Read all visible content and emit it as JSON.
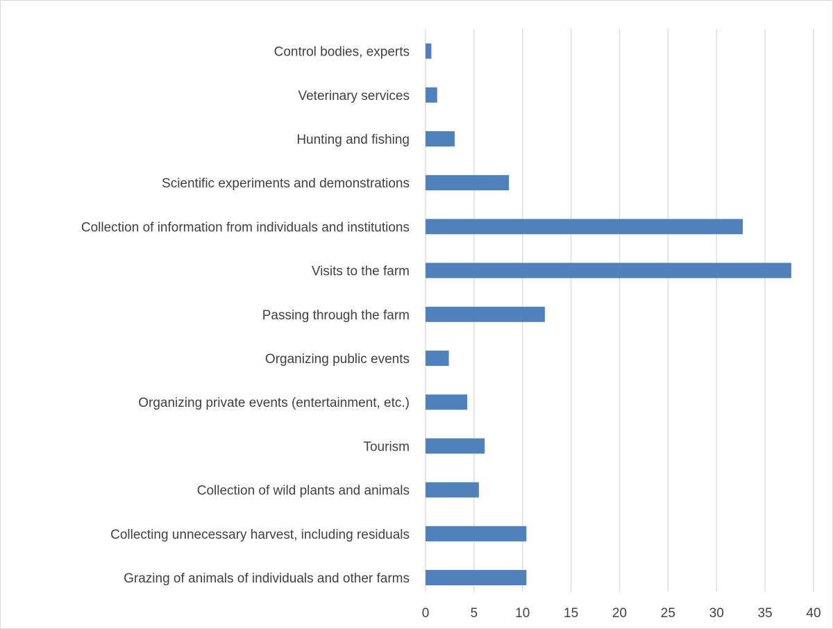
{
  "chart_data": {
    "type": "bar",
    "orientation": "horizontal",
    "categories": [
      "Control bodies, experts",
      "Veterinary services",
      "Hunting and fishing",
      "Scientific experiments and demonstrations",
      "Collection of information from individuals and institutions",
      "Visits to the farm",
      "Passing through the farm",
      "Organizing public events",
      "Organizing private events (entertainment, etc.)",
      "Tourism",
      "Collection of wild plants and animals",
      "Collecting unnecessary harvest, including residuals",
      "Grazing of animals of individuals and other farms"
    ],
    "values": [
      0.6,
      1.2,
      3.0,
      8.6,
      32.7,
      37.7,
      12.3,
      2.4,
      4.3,
      6.1,
      5.5,
      10.4,
      10.4
    ],
    "xlim": [
      0,
      40
    ],
    "xticks": [
      "0",
      "5",
      "10",
      "15",
      "20",
      "25",
      "30",
      "35",
      "40"
    ],
    "xgrid": true,
    "legend": "none",
    "bar_color": "#4f81bd",
    "grid_color": "#d9d9d9",
    "title": "",
    "xlabel": "",
    "ylabel": ""
  }
}
